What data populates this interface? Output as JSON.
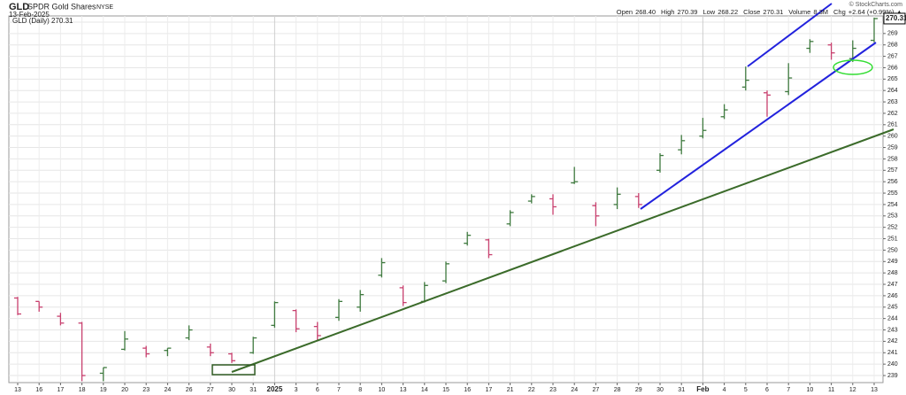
{
  "chart_data": {
    "type": "ohlc",
    "title": "GLD",
    "subtitle": "SPDR Gold Shares",
    "exchange": "NYSE",
    "date": "13-Feb-2025",
    "credit": "© StockCharts.com",
    "quote": [
      {
        "name": "Open",
        "text": "268.40"
      },
      {
        "name": "High",
        "text": "270.39"
      },
      {
        "name": "Low",
        "text": "268.22"
      },
      {
        "name": "Close",
        "text": "270.31"
      },
      {
        "name": "Volume",
        "text": "8.3M"
      },
      {
        "name": "Chg",
        "text": "+2.64 (+0.99%) ▲"
      }
    ],
    "legend": "GLD (Daily) 270.31",
    "last_label": "270.31",
    "categories": [
      "13",
      "16",
      "17",
      "18",
      "19",
      "20",
      "23",
      "24",
      "26",
      "27",
      "30",
      "31",
      "2025",
      "3",
      "6",
      "7",
      "8",
      "10",
      "13",
      "14",
      "15",
      "16",
      "17",
      "21",
      "22",
      "23",
      "24",
      "27",
      "28",
      "29",
      "30",
      "31",
      "Feb",
      "4",
      "5",
      "6",
      "7",
      "10",
      "11",
      "12",
      "13"
    ],
    "month_starts": [
      "2025",
      "Feb"
    ],
    "open": [
      245.8,
      245.5,
      244.2,
      243.6,
      239.2,
      241.3,
      241.4,
      241.2,
      242.3,
      241.5,
      240.9,
      241.0,
      243.4,
      244.7,
      243.3,
      244.1,
      245.0,
      247.8,
      246.7,
      245.5,
      247.3,
      250.6,
      250.9,
      252.3,
      254.3,
      254.5,
      255.9,
      253.9,
      254.0,
      254.7,
      257.0,
      258.8,
      260.0,
      261.7,
      264.3,
      263.8,
      263.9,
      267.7,
      268.0,
      266.8,
      268.4
    ],
    "high": [
      245.9,
      245.5,
      244.5,
      243.7,
      239.7,
      242.9,
      241.6,
      241.4,
      243.4,
      241.8,
      241.0,
      242.4,
      245.5,
      244.8,
      243.7,
      245.7,
      246.5,
      249.3,
      246.9,
      247.2,
      249.0,
      251.6,
      251.0,
      253.5,
      254.9,
      254.9,
      257.3,
      254.2,
      255.5,
      255.0,
      258.5,
      260.1,
      261.6,
      262.8,
      266.1,
      264.0,
      266.4,
      268.5,
      268.2,
      268.4,
      270.39
    ],
    "low": [
      244.3,
      244.6,
      243.4,
      238.5,
      238.5,
      241.2,
      240.6,
      240.7,
      242.1,
      240.7,
      240.1,
      240.9,
      243.2,
      242.8,
      242.1,
      243.8,
      244.6,
      247.6,
      245.1,
      245.4,
      247.1,
      250.4,
      249.3,
      252.1,
      254.1,
      253.1,
      255.8,
      252.1,
      253.6,
      253.7,
      256.8,
      258.4,
      259.8,
      261.5,
      264.0,
      261.7,
      263.6,
      267.3,
      266.7,
      266.5,
      268.22
    ],
    "close": [
      244.4,
      245.0,
      243.6,
      239.0,
      239.7,
      242.2,
      240.9,
      241.4,
      243.0,
      241.0,
      240.3,
      242.3,
      245.4,
      243.1,
      242.5,
      245.5,
      246.1,
      248.9,
      245.4,
      246.9,
      248.8,
      251.3,
      249.6,
      253.3,
      254.7,
      253.8,
      256.0,
      253.0,
      254.9,
      254.0,
      258.3,
      259.6,
      260.5,
      262.3,
      264.9,
      263.6,
      265.1,
      268.3,
      267.3,
      267.7,
      270.31
    ],
    "ylim": [
      238.38,
      270.54
    ],
    "yticks": [
      239,
      240,
      241,
      242,
      243,
      244,
      245,
      246,
      247,
      248,
      249,
      250,
      251,
      252,
      253,
      254,
      255,
      256,
      257,
      258,
      259,
      260,
      261,
      262,
      263,
      264,
      265,
      266,
      267,
      268,
      269,
      270
    ],
    "grid": true,
    "up_color": "#3f7a3f",
    "down_color": "#c8406e"
  }
}
